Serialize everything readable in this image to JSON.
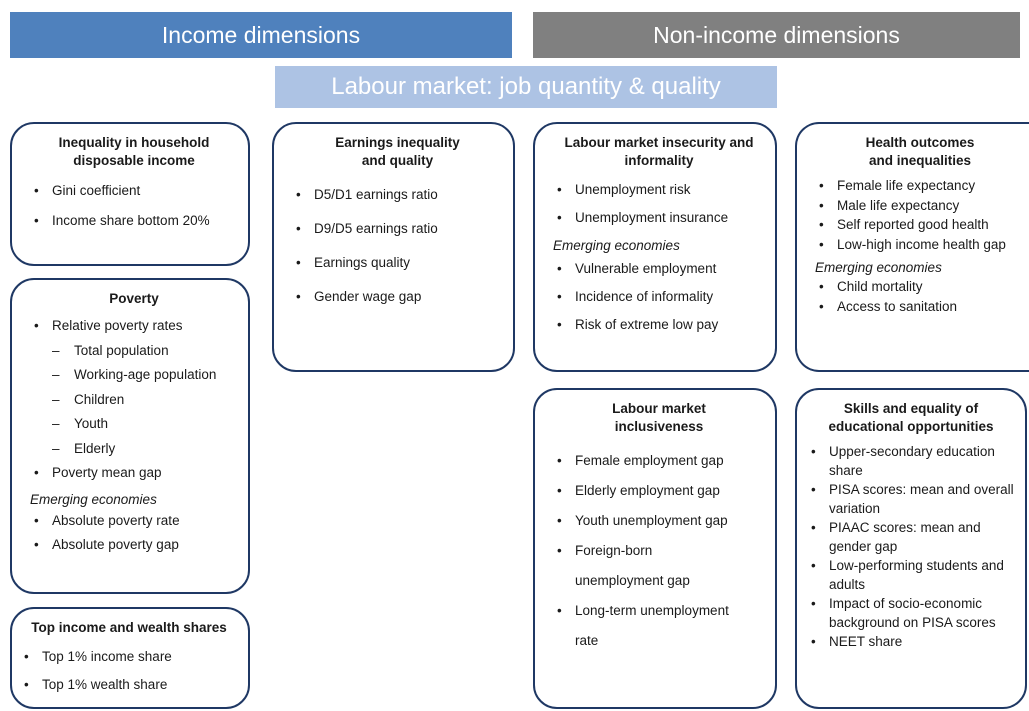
{
  "headers": {
    "income": "Income dimensions",
    "non_income": "Non-income dimensions",
    "labour_market": "Labour market: job quantity & quality"
  },
  "boxes": [
    {
      "title": "Inequality in household disposable income",
      "items": [
        "Gini coefficient",
        "Income share bottom 20%"
      ]
    },
    {
      "title": "Poverty",
      "items": [
        {
          "text": "Relative poverty rates",
          "subitems": [
            "Total population",
            "Working-age population",
            "Children",
            "Youth",
            "Elderly"
          ]
        },
        "Poverty mean gap"
      ],
      "emerging_heading": "Emerging economies",
      "emerging_items": [
        "Absolute poverty rate",
        "Absolute poverty gap"
      ]
    },
    {
      "title": "Top income and wealth shares",
      "items": [
        "Top 1% income share",
        "Top 1% wealth share"
      ]
    },
    {
      "title": "Earnings inequality and quality",
      "items": [
        "D5/D1 earnings ratio",
        "D9/D5 earnings ratio",
        "Earnings quality",
        "Gender wage gap"
      ]
    },
    {
      "title": "Labour market insecurity and informality",
      "items": [
        "Unemployment risk",
        "Unemployment insurance"
      ],
      "emerging_heading": "Emerging economies",
      "emerging_items": [
        "Vulnerable employment",
        "Incidence of informality",
        "Risk of extreme low pay"
      ]
    },
    {
      "title": "Labour market inclusiveness",
      "items": [
        "Female employment gap",
        "Elderly employment gap",
        "Youth unemployment gap",
        "Foreign-born unemployment gap",
        "Long-term unemployment rate"
      ]
    },
    {
      "title": "Health outcomes and inequalities",
      "items": [
        "Female life expectancy",
        "Male life expectancy",
        "Self reported good health",
        "Low-high income health gap"
      ],
      "emerging_heading": "Emerging economies",
      "emerging_items": [
        "Child mortality",
        "Access to sanitation"
      ]
    },
    {
      "title": "Skills and equality of educational opportunities",
      "items": [
        "Upper-secondary education share",
        "PISA scores: mean and overall variation",
        "PIAAC scores: mean and gender gap",
        "Low-performing students and adults",
        "Impact of socio-economic background on PISA scores",
        "NEET share"
      ]
    }
  ]
}
